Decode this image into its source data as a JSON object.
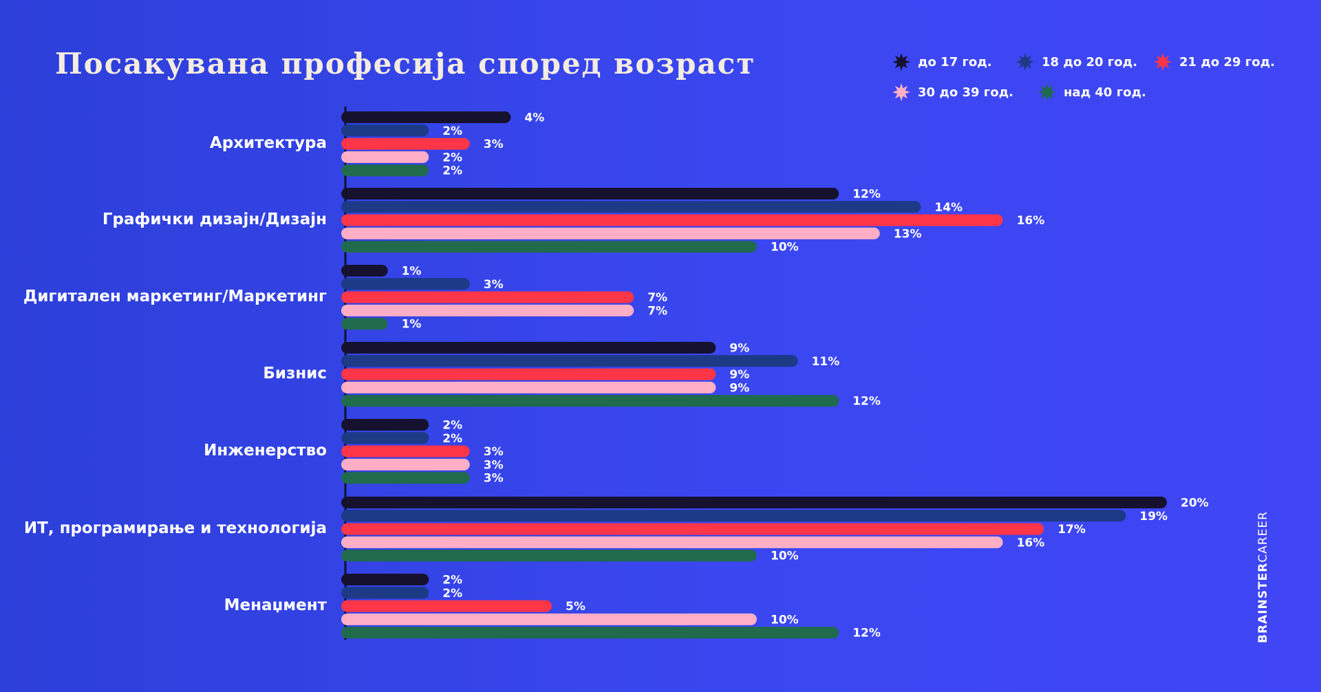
{
  "title": "Посакувана професија според возраст",
  "brand": {
    "bold": "BRAINSTER",
    "light": "CAREER"
  },
  "colors": {
    "background": "#3a47f0",
    "axis": "#101030"
  },
  "chart_data": {
    "type": "bar",
    "orientation": "horizontal",
    "title": "Посакувана професија според возраст",
    "legend_position": "top-right",
    "categories": [
      "Архитектура",
      "Графички дизајн/Дизајн",
      "Дигитален маркетинг/Маркетинг",
      "Бизнис",
      "Инженерство",
      "ИТ, програмирање и технологија",
      "Менаџмент"
    ],
    "series": [
      {
        "name": "до 17 год.",
        "color": "#15112e",
        "values": [
          4,
          12,
          1,
          9,
          2,
          20,
          2
        ]
      },
      {
        "name": "18 до 20 год.",
        "color": "#1c3a86",
        "values": [
          2,
          14,
          3,
          11,
          2,
          19,
          2
        ]
      },
      {
        "name": "21 до 29 год.",
        "color": "#ff3548",
        "values": [
          3,
          16,
          7,
          9,
          3,
          17,
          5
        ]
      },
      {
        "name": "30 до 39 год.",
        "color": "#ffaec6",
        "values": [
          2,
          13,
          7,
          9,
          3,
          16,
          10
        ]
      },
      {
        "name": "над 40 год.",
        "color": "#1f6b4c",
        "values": [
          2,
          10,
          1,
          12,
          3,
          10,
          12
        ]
      }
    ],
    "value_suffix": "%",
    "xlim": [
      0,
      20
    ],
    "grid": false
  }
}
